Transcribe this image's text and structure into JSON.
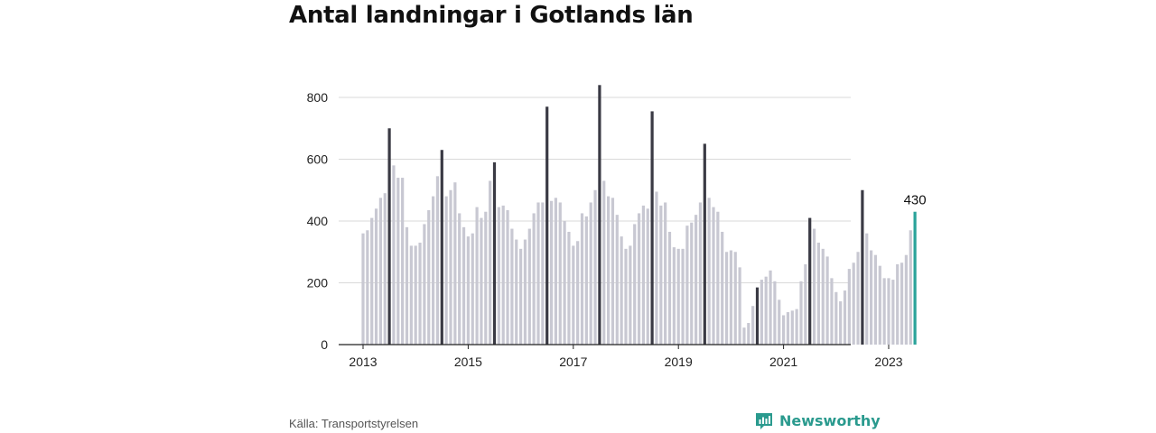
{
  "title": "Antal landningar i Gotlands län",
  "source": "Källa: Transportstyrelsen",
  "brand": {
    "name": "Newsworthy",
    "icon": "newsworthy-logo-icon"
  },
  "colors": {
    "regular": "#c8c8d2",
    "july": "#3a3a44",
    "latest": "#2aa39a",
    "grid": "#d9d9d9",
    "axis": "#222222"
  },
  "chart_data": {
    "type": "bar",
    "title": "Antal landningar i Gotlands län",
    "xlabel": "",
    "ylabel": "",
    "ylim": [
      0,
      850
    ],
    "yticks": [
      0,
      200,
      400,
      600,
      800
    ],
    "xticks": [
      "2013",
      "2015",
      "2017",
      "2019",
      "2021",
      "2023"
    ],
    "grid": true,
    "start": "2013-01",
    "highlight_label": "430",
    "values": [
      360,
      370,
      410,
      440,
      475,
      490,
      700,
      580,
      540,
      540,
      380,
      320,
      320,
      330,
      390,
      435,
      480,
      545,
      630,
      480,
      500,
      525,
      425,
      380,
      350,
      360,
      445,
      410,
      430,
      530,
      590,
      445,
      450,
      435,
      375,
      340,
      310,
      340,
      375,
      425,
      460,
      460,
      770,
      465,
      475,
      460,
      400,
      365,
      320,
      335,
      425,
      415,
      460,
      500,
      840,
      530,
      480,
      475,
      420,
      350,
      310,
      320,
      390,
      425,
      450,
      440,
      755,
      495,
      450,
      460,
      365,
      315,
      310,
      310,
      385,
      395,
      420,
      460,
      650,
      475,
      445,
      430,
      365,
      300,
      305,
      300,
      250,
      55,
      70,
      125,
      185,
      210,
      220,
      240,
      205,
      145,
      95,
      105,
      110,
      115,
      205,
      260,
      410,
      375,
      330,
      310,
      285,
      215,
      170,
      140,
      175,
      245,
      265,
      300,
      500,
      360,
      305,
      290,
      255,
      215,
      215,
      210,
      260,
      265,
      290,
      370,
      430
    ]
  }
}
